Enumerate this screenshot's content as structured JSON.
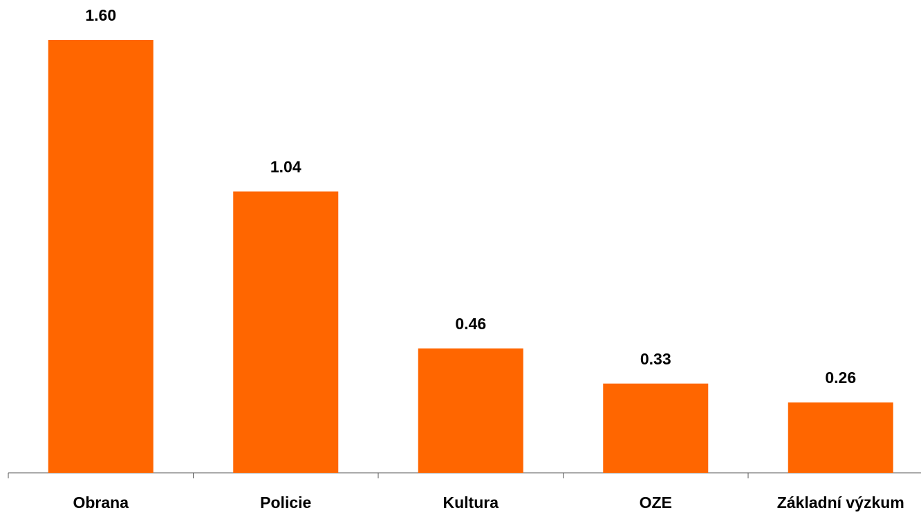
{
  "chart_data": {
    "type": "bar",
    "categories": [
      "Obrana",
      "Policie",
      "Kultura",
      "OZE",
      "Základní výzkum"
    ],
    "values": [
      1.6,
      1.04,
      0.46,
      0.33,
      0.26
    ],
    "value_labels": [
      "1.60",
      "1.04",
      "0.46",
      "0.33",
      "0.26"
    ],
    "color": "#ff6600"
  }
}
